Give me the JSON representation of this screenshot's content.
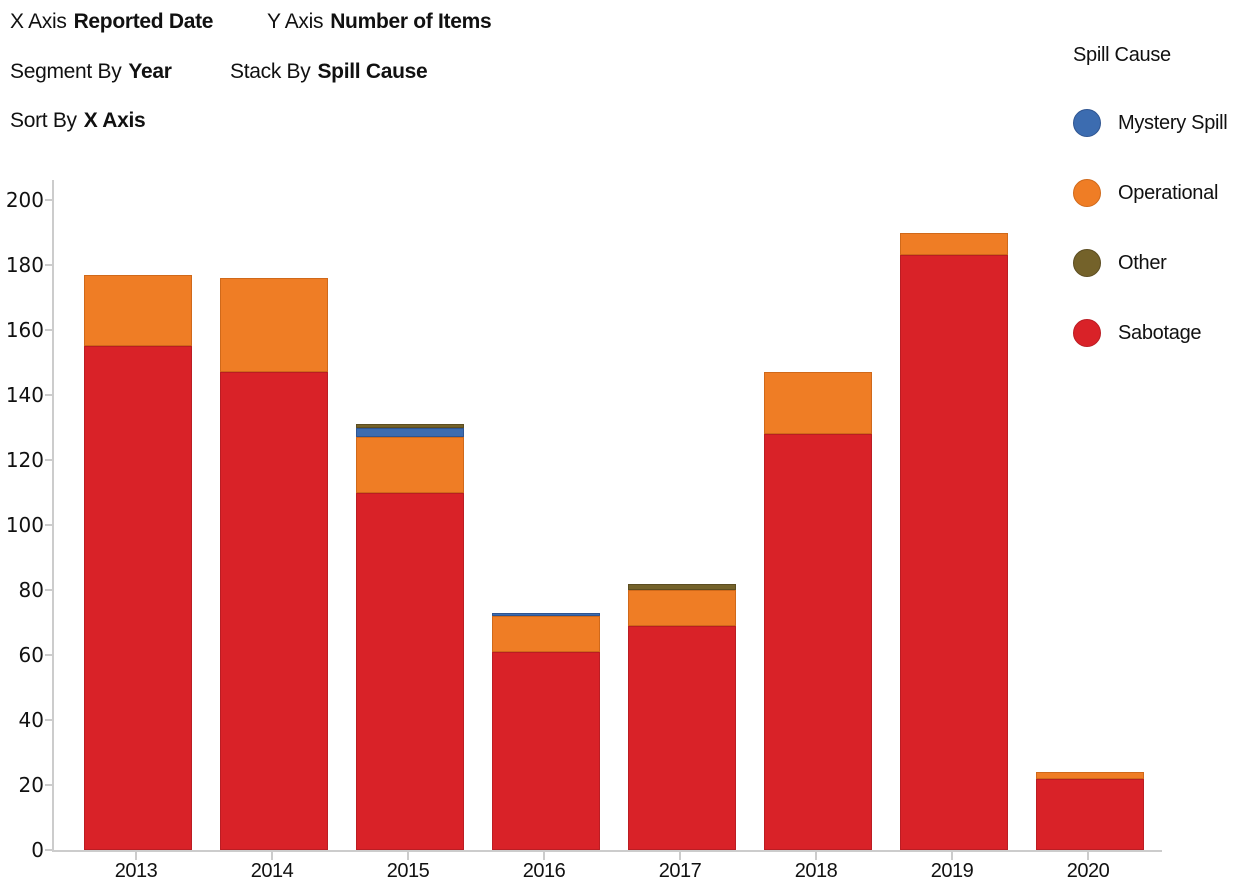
{
  "config": {
    "x_axis": {
      "label": "X Axis",
      "value": "Reported Date"
    },
    "y_axis": {
      "label": "Y Axis",
      "value": "Number of Items"
    },
    "segment_by": {
      "label": "Segment By",
      "value": "Year"
    },
    "stack_by": {
      "label": "Stack By",
      "value": "Spill Cause"
    },
    "sort_by": {
      "label": "Sort By",
      "value": "X Axis"
    }
  },
  "legend": {
    "title": "Spill Cause",
    "order": [
      "Mystery Spill",
      "Operational",
      "Other",
      "Sabotage"
    ]
  },
  "chart_data": {
    "type": "bar",
    "stacked": true,
    "xlabel": "Reported Date",
    "ylabel": "Number of Items",
    "categories": [
      "2013",
      "2014",
      "2015",
      "2016",
      "2017",
      "2018",
      "2019",
      "2020"
    ],
    "series": [
      {
        "name": "Sabotage",
        "color": "#d92228",
        "border": "#bb1d23",
        "values": [
          155,
          147,
          110,
          61,
          69,
          128,
          183,
          22
        ]
      },
      {
        "name": "Operational",
        "color": "#ef7d25",
        "border": "#d0691a",
        "values": [
          22,
          29,
          17,
          11,
          11,
          19,
          7,
          2
        ]
      },
      {
        "name": "Mystery Spill",
        "color": "#3c6cb0",
        "border": "#2f5591",
        "values": [
          0,
          0,
          3,
          1,
          0,
          0,
          0,
          0
        ]
      },
      {
        "name": "Other",
        "color": "#74622a",
        "border": "#5c4d21",
        "values": [
          0,
          0,
          1,
          0,
          2,
          0,
          0,
          0
        ]
      }
    ],
    "totals": [
      177,
      176,
      131,
      73,
      82,
      147,
      190,
      24
    ],
    "ylim": [
      0,
      200
    ],
    "ytick_step": 20,
    "yticks": [
      0,
      20,
      40,
      60,
      80,
      100,
      120,
      140,
      160,
      180,
      200
    ],
    "grid": false,
    "legend_position": "right",
    "axis_color": "#cccccc"
  }
}
